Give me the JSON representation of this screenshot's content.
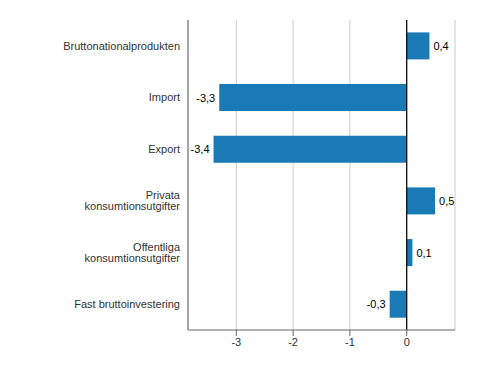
{
  "chart_data": {
    "type": "bar",
    "orientation": "horizontal",
    "categories": [
      "Fast bruttoinvestering",
      "Offentliga konsumtionsutgifter",
      "Privata konsumtionsutgifter",
      "Export",
      "Import",
      "Bruttonationalprodukten"
    ],
    "values": [
      -0.3,
      0.1,
      0.5,
      -3.4,
      -3.3,
      0.4
    ],
    "value_labels": [
      "-0,3",
      "0,1",
      "0,5",
      "-3,4",
      "-3,3",
      "0,4"
    ],
    "data_labels": true,
    "color": "#1a7ab5",
    "xlim": [
      -3.85,
      0.85
    ],
    "xticks": [
      -3,
      -2,
      -1,
      0
    ],
    "grid": true
  }
}
